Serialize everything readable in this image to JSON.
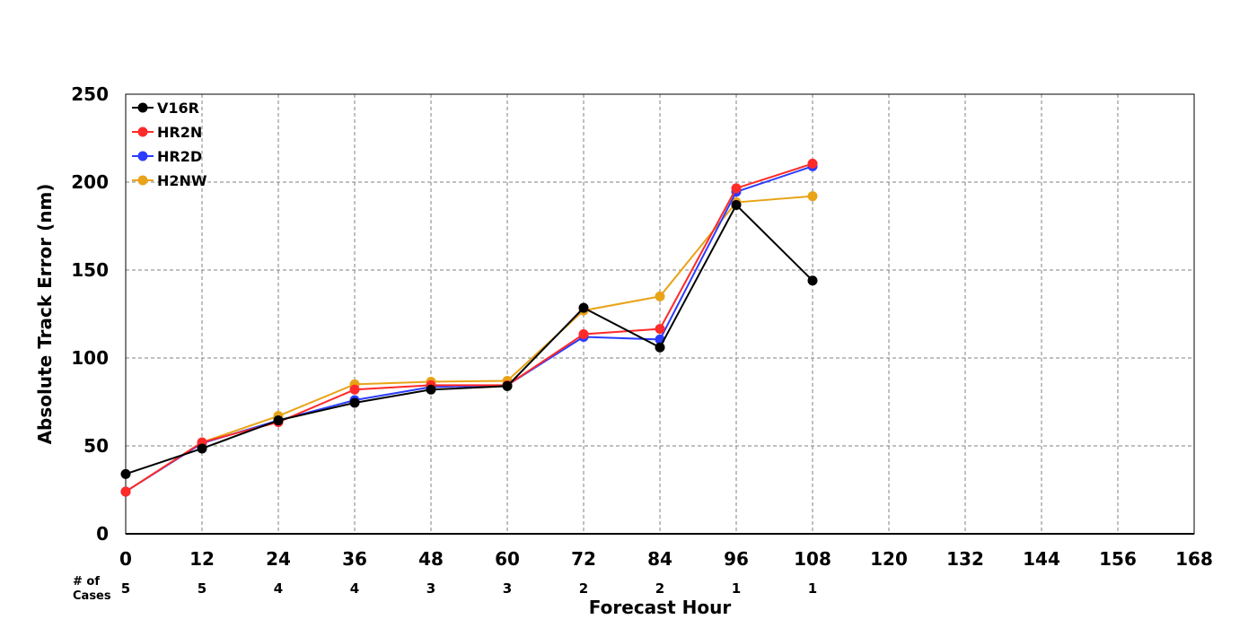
{
  "chart_data": {
    "type": "line",
    "title": "",
    "xlabel": "Forecast Hour",
    "ylabel": "Absolute Track Error (nm)",
    "x": [
      0,
      12,
      24,
      36,
      48,
      60,
      72,
      84,
      96,
      108
    ],
    "xlim": [
      0,
      168
    ],
    "ylim": [
      0,
      250
    ],
    "xticks": [
      0,
      12,
      24,
      36,
      48,
      60,
      72,
      84,
      96,
      108,
      120,
      132,
      144,
      156,
      168
    ],
    "yticks": [
      0,
      50,
      100,
      150,
      200,
      250
    ],
    "xtick_labels": [
      "0",
      "12",
      "24",
      "36",
      "48",
      "60",
      "72",
      "84",
      "96",
      "108",
      "120",
      "132",
      "144",
      "156",
      "168"
    ],
    "ytick_labels": [
      "0",
      "50",
      "100",
      "150",
      "200",
      "250"
    ],
    "grid": true,
    "legend_position": "top-left",
    "series": [
      {
        "name": "V16R",
        "color": "#000000",
        "values": [
          34,
          48.5,
          64.5,
          74.5,
          82,
          84,
          128.5,
          106,
          187,
          144
        ]
      },
      {
        "name": "HR2N",
        "color": "#ff2a2a",
        "values": [
          24,
          52,
          63.5,
          82,
          84.5,
          84.5,
          113.5,
          116.5,
          196.5,
          210.5
        ]
      },
      {
        "name": "HR2D",
        "color": "#2a3cff",
        "values": [
          24,
          51.5,
          64.5,
          76,
          83.5,
          84.5,
          112,
          110.5,
          194.5,
          209
        ]
      },
      {
        "name": "H2NW",
        "color": "#e8a317",
        "values": [
          24,
          52,
          67,
          85,
          86.5,
          87,
          127,
          135,
          188.5,
          192
        ]
      }
    ],
    "cases_label": "# of\nCases",
    "cases_label_lines": [
      "# of",
      "Cases"
    ],
    "cases": [
      "5",
      "5",
      "4",
      "4",
      "3",
      "3",
      "2",
      "2",
      "1",
      "1"
    ]
  }
}
